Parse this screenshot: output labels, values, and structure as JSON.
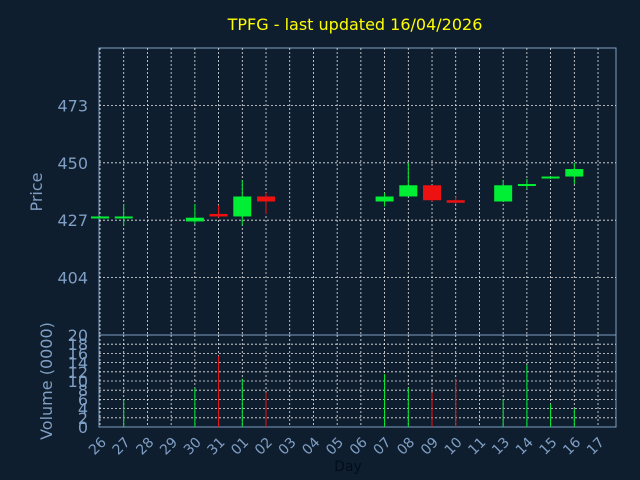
{
  "chart_data": [
    {
      "type": "candlestick",
      "title": "TPFG - last updated 16/04/2026",
      "ylabel": "Price",
      "ylim": [
        381,
        496
      ],
      "yticks": [
        404,
        427,
        450,
        473
      ],
      "grid": true,
      "colors": {
        "up": "#00ee33",
        "down": "#ee1111",
        "title": "#ffff00",
        "axis_text": "#7f9fc4"
      },
      "candles": [
        {
          "x": "26",
          "open": 428,
          "close": 428.5,
          "high": 428.5,
          "low": 428
        },
        {
          "x": "27",
          "open": 428,
          "close": 428.5,
          "high": 433.5,
          "low": 425
        },
        {
          "x": "30",
          "open": 426.5,
          "close": 428,
          "high": 433.5,
          "low": 425.5
        },
        {
          "x": "31",
          "open": 429.5,
          "close": 428.5,
          "high": 433,
          "low": 428
        },
        {
          "x": "01",
          "open": 428.5,
          "close": 436.5,
          "high": 443,
          "low": 425
        },
        {
          "x": "02",
          "open": 436.5,
          "close": 434.5,
          "high": 438,
          "low": 429.5
        },
        {
          "x": "07",
          "open": 434.5,
          "close": 436.5,
          "high": 438,
          "low": 432.5
        },
        {
          "x": "08",
          "open": 436.5,
          "close": 441,
          "high": 450,
          "low": 436.5
        },
        {
          "x": "09",
          "open": 441,
          "close": 435,
          "high": 441,
          "low": 434.5
        },
        {
          "x": "10",
          "open": 435,
          "close": 434,
          "high": 436.5,
          "low": 433.5
        },
        {
          "x": "13",
          "open": 434.5,
          "close": 441,
          "high": 443,
          "low": 434.5
        },
        {
          "x": "14",
          "open": 441,
          "close": 441.5,
          "high": 443.5,
          "low": 439.5
        },
        {
          "x": "15",
          "open": 444,
          "close": 444.5,
          "high": 444.5,
          "low": 443.5
        },
        {
          "x": "16",
          "open": 444.5,
          "close": 447.5,
          "high": 450,
          "low": 441.5
        }
      ]
    },
    {
      "type": "bar",
      "ylabel": "Volume (0000)",
      "xlabel": "Day",
      "ylim": [
        0,
        20
      ],
      "yticks": [
        0,
        2,
        4,
        6,
        8,
        10,
        12,
        14,
        16,
        18,
        20
      ],
      "categories": [
        "26",
        "27",
        "28",
        "29",
        "30",
        "31",
        "01",
        "02",
        "03",
        "04",
        "05",
        "06",
        "07",
        "08",
        "09",
        "10",
        "11",
        "13",
        "14",
        "15",
        "16",
        "17"
      ],
      "bars": [
        {
          "x": "27",
          "value": 6,
          "dir": "up"
        },
        {
          "x": "30",
          "value": 8.5,
          "dir": "up"
        },
        {
          "x": "31",
          "value": 15.5,
          "dir": "down"
        },
        {
          "x": "01",
          "value": 10.5,
          "dir": "up"
        },
        {
          "x": "02",
          "value": 7.5,
          "dir": "down"
        },
        {
          "x": "07",
          "value": 11.5,
          "dir": "up"
        },
        {
          "x": "08",
          "value": 8.5,
          "dir": "up"
        },
        {
          "x": "09",
          "value": 7.5,
          "dir": "down"
        },
        {
          "x": "10",
          "value": 10.5,
          "dir": "down"
        },
        {
          "x": "13",
          "value": 6,
          "dir": "up"
        },
        {
          "x": "14",
          "value": 13.5,
          "dir": "up"
        },
        {
          "x": "15",
          "value": 5,
          "dir": "up"
        },
        {
          "x": "16",
          "value": 4,
          "dir": "up"
        }
      ]
    }
  ]
}
